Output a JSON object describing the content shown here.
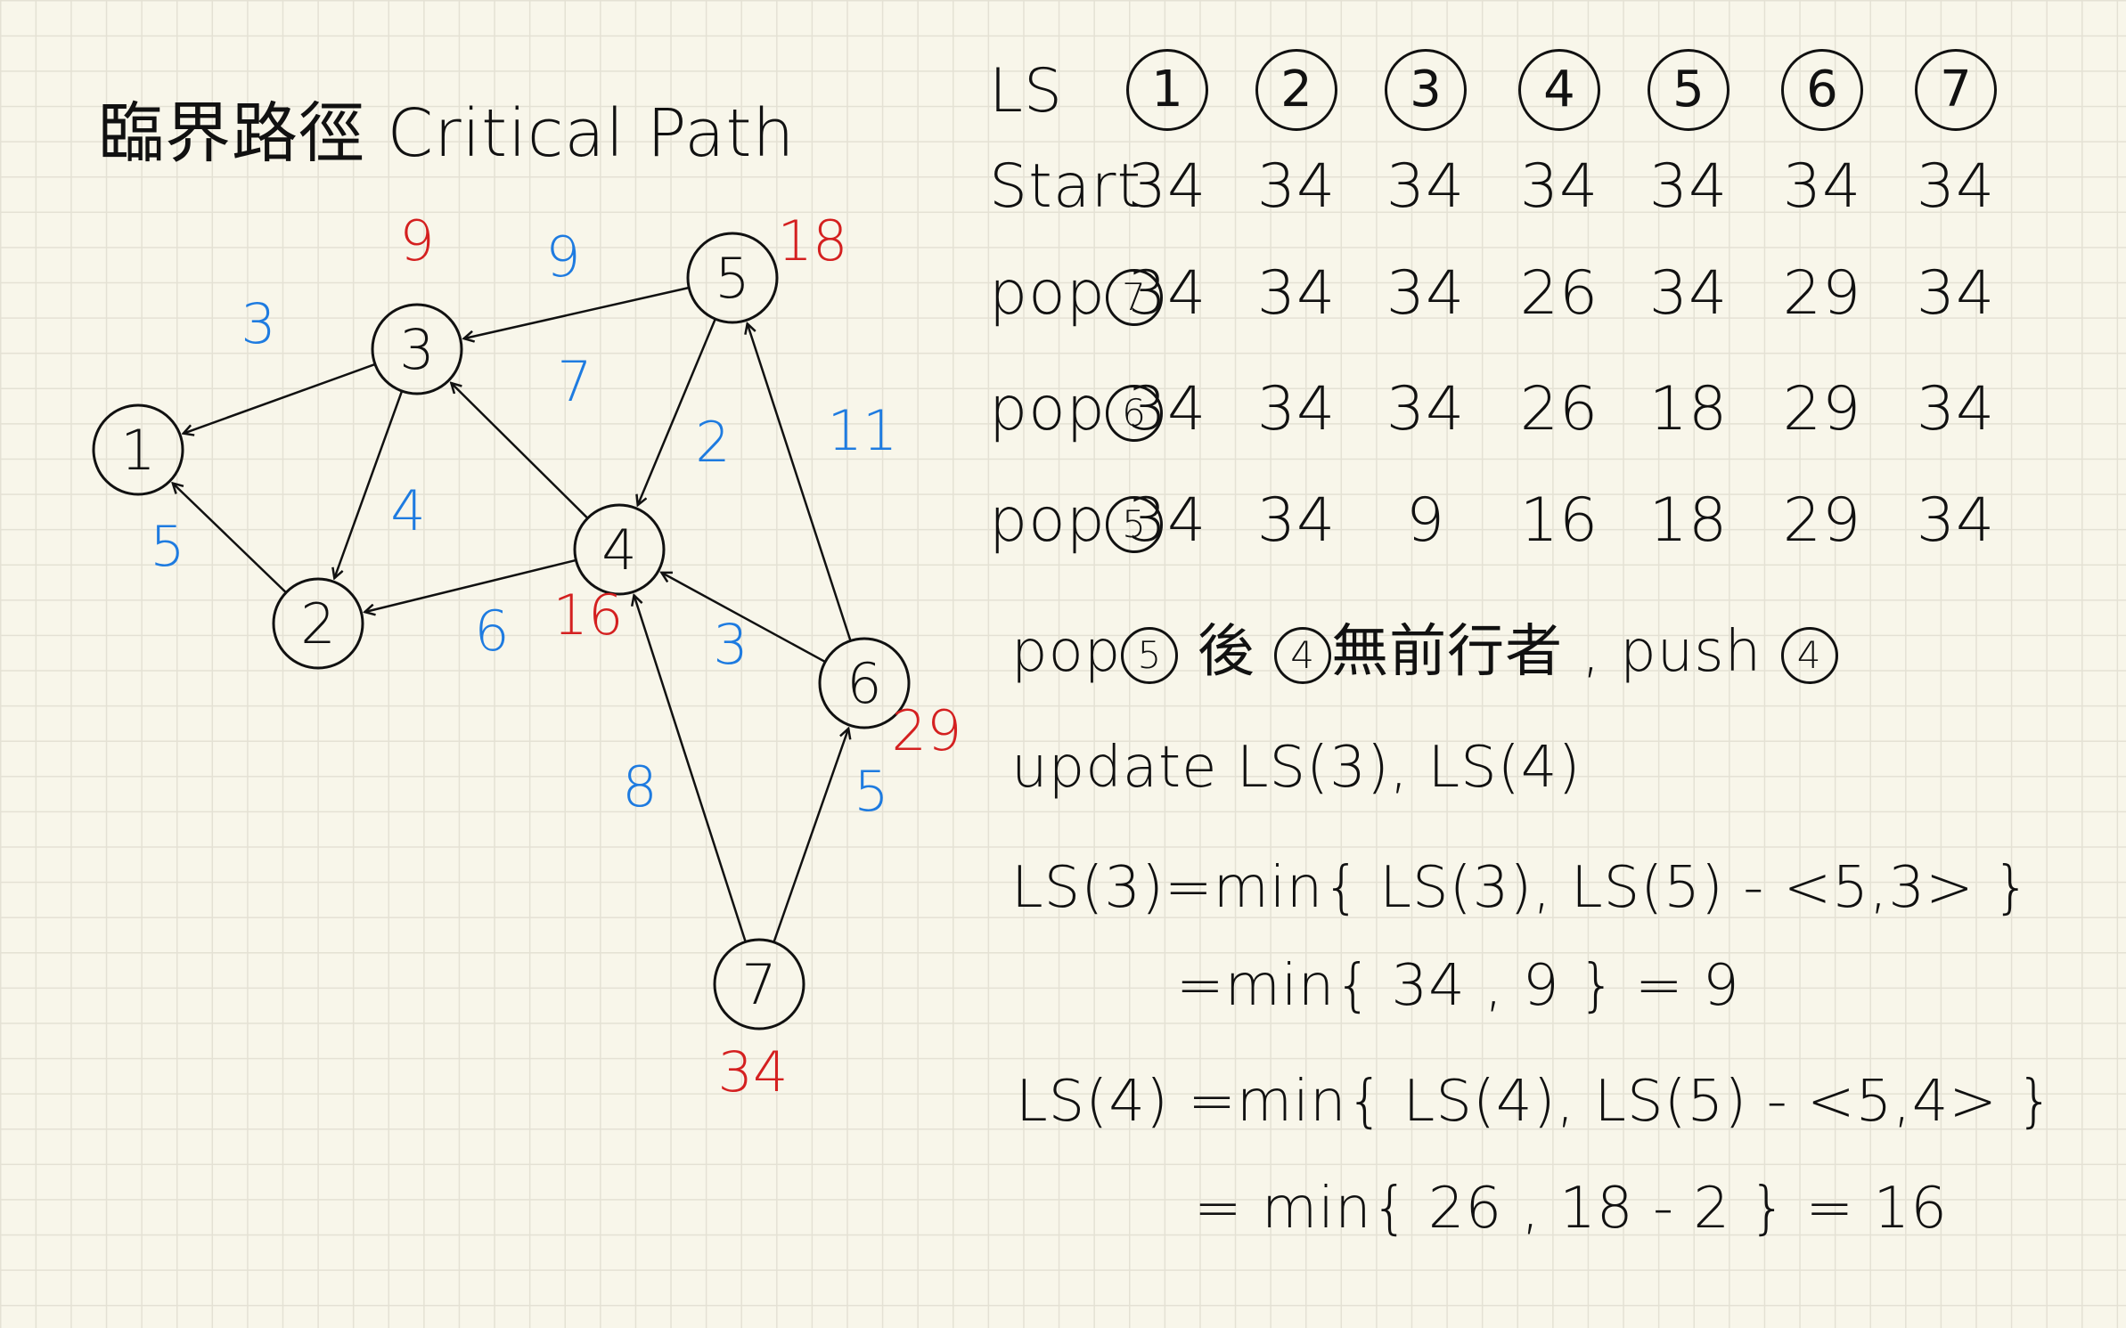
{
  "title": "臨界路徑 Critical Path",
  "graph": {
    "nodes": [
      {
        "id": "1",
        "label": "1",
        "ls": ""
      },
      {
        "id": "2",
        "label": "2",
        "ls": ""
      },
      {
        "id": "3",
        "label": "3",
        "ls": "9"
      },
      {
        "id": "4",
        "label": "4",
        "ls": "16"
      },
      {
        "id": "5",
        "label": "5",
        "ls": "18"
      },
      {
        "id": "6",
        "label": "6",
        "ls": "29"
      },
      {
        "id": "7",
        "label": "7",
        "ls": "34"
      }
    ],
    "edges": [
      {
        "from": "3",
        "to": "1",
        "weight": "3"
      },
      {
        "from": "2",
        "to": "1",
        "weight": "5"
      },
      {
        "from": "5",
        "to": "3",
        "weight": "9"
      },
      {
        "from": "4",
        "to": "3",
        "weight": "7"
      },
      {
        "from": "3",
        "to": "2",
        "weight": "4"
      },
      {
        "from": "4",
        "to": "2",
        "weight": "6"
      },
      {
        "from": "5",
        "to": "4",
        "weight": "2"
      },
      {
        "from": "6",
        "to": "4",
        "weight": "3"
      },
      {
        "from": "7",
        "to": "4",
        "weight": "8"
      },
      {
        "from": "6",
        "to": "5",
        "weight": "11"
      },
      {
        "from": "7",
        "to": "6",
        "weight": "5"
      }
    ],
    "colors": {
      "ink": "#111111",
      "weight": "#1e7be0",
      "ls": "#d42020"
    }
  },
  "table": {
    "header_label": "LS",
    "columns": [
      "1",
      "2",
      "3",
      "4",
      "5",
      "6",
      "7"
    ],
    "rows": [
      {
        "label": "Start",
        "values": [
          "34",
          "34",
          "34",
          "34",
          "34",
          "34",
          "34"
        ]
      },
      {
        "label": "pop",
        "node": "7",
        "values": [
          "34",
          "34",
          "34",
          "26",
          "34",
          "29",
          "34"
        ]
      },
      {
        "label": "pop",
        "node": "6",
        "values": [
          "34",
          "34",
          "34",
          "26",
          "18",
          "29",
          "34"
        ]
      },
      {
        "label": "pop",
        "node": "5",
        "values": [
          "34",
          "34",
          "9",
          "16",
          "18",
          "29",
          "34"
        ]
      }
    ]
  },
  "notes": {
    "line1": {
      "pre": "pop",
      "n1": "5",
      "mid": "後 ",
      "n2": "4",
      "post": "無前行者 , push ",
      "n3": "4"
    },
    "line2": "update LS(3), LS(4)",
    "line3": "LS(3)=min{ LS(3), LS(5) - <5,3> }",
    "line4": "=min{ 34 , 9 } = 9",
    "line5": "LS(4) =min{ LS(4), LS(5) - <5,4> }",
    "line6": "= min{ 26 , 18 - 2 } = 16"
  }
}
